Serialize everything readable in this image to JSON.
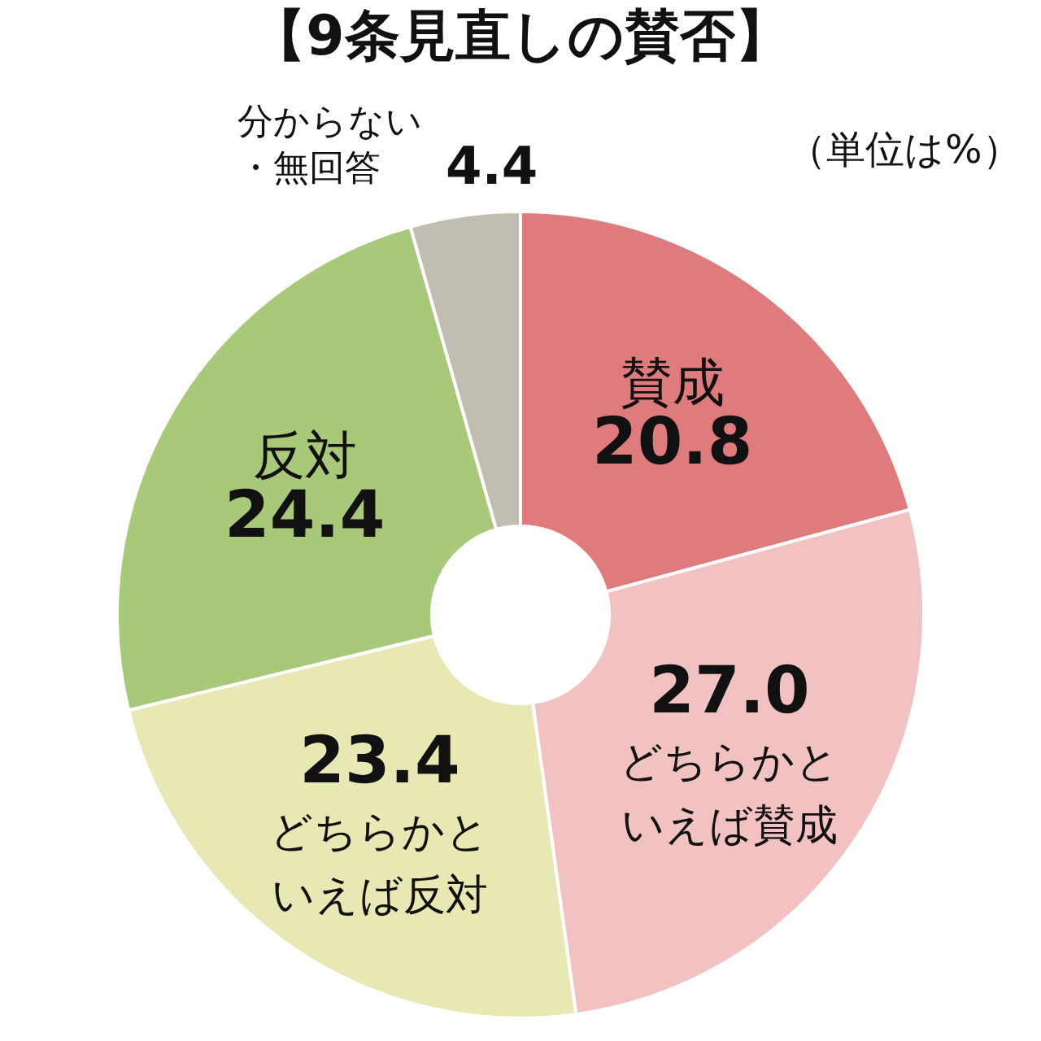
{
  "chart_data": {
    "type": "donut",
    "title": "【9条見直しの賛否】",
    "categories": [
      "賛成",
      "どちらかといえば賛成",
      "どちらかといえば反対",
      "反対",
      "分からない・無回答"
    ],
    "values": [
      20.8,
      27.0,
      23.4,
      24.4,
      4.4
    ],
    "value_labels": [
      "20.8",
      "27.0",
      "23.4",
      "24.4",
      "4.4"
    ],
    "colors": [
      "#e07b7d",
      "#f2c2c2",
      "#e8e8b4",
      "#a9c97a",
      "#c2bdb2"
    ],
    "legend": false,
    "annotations": [
      "（単位は%）"
    ]
  }
}
